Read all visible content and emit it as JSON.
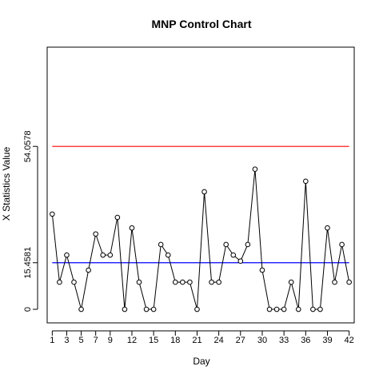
{
  "chart_data": {
    "type": "line",
    "title": "MNP Control Chart",
    "xlabel": "Day",
    "ylabel": "X Statistics Value",
    "x": [
      1,
      2,
      3,
      4,
      5,
      6,
      7,
      8,
      9,
      10,
      11,
      12,
      13,
      14,
      15,
      16,
      17,
      18,
      19,
      20,
      21,
      22,
      23,
      24,
      25,
      26,
      27,
      28,
      29,
      30,
      31,
      32,
      33,
      34,
      35,
      36,
      37,
      38,
      39,
      40,
      41,
      42
    ],
    "values": [
      31.6,
      9,
      18,
      9,
      0,
      13,
      25,
      18,
      18,
      30.5,
      0,
      27,
      9,
      0,
      0,
      21.5,
      18,
      9,
      9,
      9,
      0,
      39,
      9,
      9,
      21.5,
      18,
      16,
      21.5,
      46.5,
      13,
      0,
      0,
      0,
      9,
      0,
      42.5,
      0,
      0,
      27,
      9,
      21.5,
      9
    ],
    "ucl": 54.0578,
    "cl": 15.4581,
    "xticks": [
      1,
      3,
      5,
      7,
      9,
      12,
      15,
      18,
      21,
      24,
      27,
      30,
      33,
      36,
      39,
      42
    ],
    "yticks": [
      {
        "value": 0,
        "label": "0"
      },
      {
        "value": 15.4581,
        "label": "15.4581"
      },
      {
        "value": 54.0578,
        "label": "54.0578"
      }
    ],
    "xlim": [
      0.3,
      42.7
    ],
    "ylim": [
      -4.5,
      87
    ],
    "colors": {
      "ucl": "#ff0000",
      "cl": "#0000ff",
      "series": "#000000"
    }
  }
}
